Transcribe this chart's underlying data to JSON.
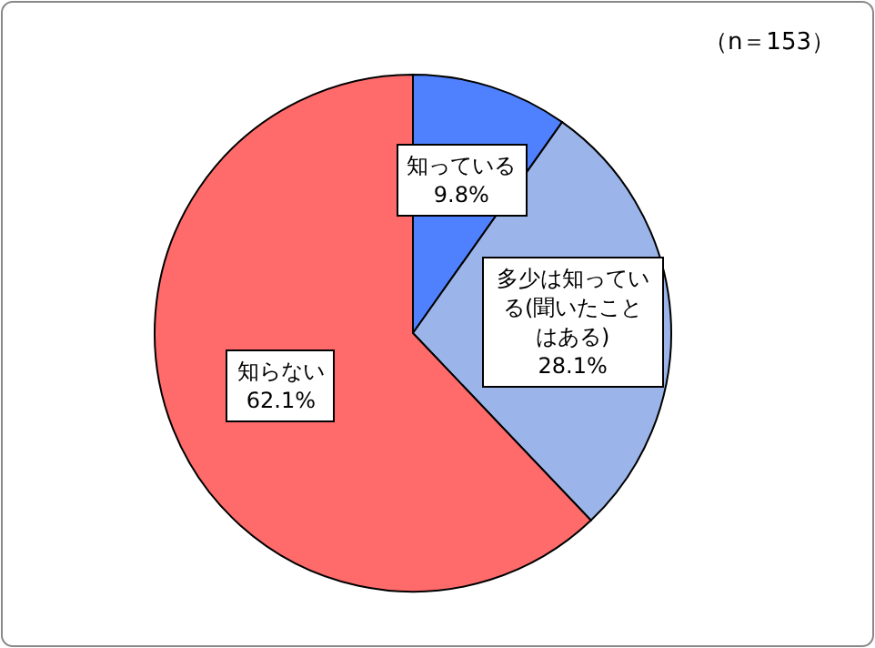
{
  "chart_data": {
    "type": "pie",
    "categories": [
      "知っている",
      "多少は知っている(聞いたことはある)",
      "知らない"
    ],
    "values": [
      9.8,
      28.1,
      62.1
    ],
    "value_labels": [
      "9.8%",
      "28.1%",
      "62.1%"
    ],
    "colors": [
      "#4f81ff",
      "#9bb5ea",
      "#ff6b6b"
    ],
    "annotations": [
      "（n＝153）"
    ]
  }
}
